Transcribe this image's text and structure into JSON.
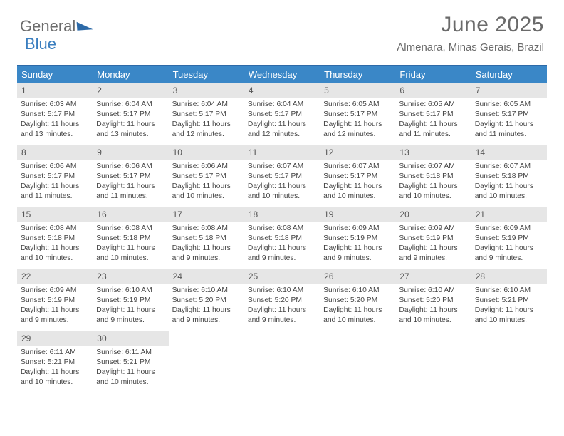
{
  "logo": {
    "text1": "General",
    "text2": "Blue"
  },
  "title": "June 2025",
  "location": "Almenara, Minas Gerais, Brazil",
  "day_names": [
    "Sunday",
    "Monday",
    "Tuesday",
    "Wednesday",
    "Thursday",
    "Friday",
    "Saturday"
  ],
  "colors": {
    "header_bg": "#3a87c7",
    "border": "#2d6aa8",
    "daynum_bg": "#e6e6e6",
    "text_muted": "#6a6a6a"
  },
  "first_weekday": 0,
  "weeks": [
    [
      {
        "n": 1,
        "sunrise": "6:03 AM",
        "sunset": "5:17 PM",
        "daylight": "11 hours and 13 minutes."
      },
      {
        "n": 2,
        "sunrise": "6:04 AM",
        "sunset": "5:17 PM",
        "daylight": "11 hours and 13 minutes."
      },
      {
        "n": 3,
        "sunrise": "6:04 AM",
        "sunset": "5:17 PM",
        "daylight": "11 hours and 12 minutes."
      },
      {
        "n": 4,
        "sunrise": "6:04 AM",
        "sunset": "5:17 PM",
        "daylight": "11 hours and 12 minutes."
      },
      {
        "n": 5,
        "sunrise": "6:05 AM",
        "sunset": "5:17 PM",
        "daylight": "11 hours and 12 minutes."
      },
      {
        "n": 6,
        "sunrise": "6:05 AM",
        "sunset": "5:17 PM",
        "daylight": "11 hours and 11 minutes."
      },
      {
        "n": 7,
        "sunrise": "6:05 AM",
        "sunset": "5:17 PM",
        "daylight": "11 hours and 11 minutes."
      }
    ],
    [
      {
        "n": 8,
        "sunrise": "6:06 AM",
        "sunset": "5:17 PM",
        "daylight": "11 hours and 11 minutes."
      },
      {
        "n": 9,
        "sunrise": "6:06 AM",
        "sunset": "5:17 PM",
        "daylight": "11 hours and 11 minutes."
      },
      {
        "n": 10,
        "sunrise": "6:06 AM",
        "sunset": "5:17 PM",
        "daylight": "11 hours and 10 minutes."
      },
      {
        "n": 11,
        "sunrise": "6:07 AM",
        "sunset": "5:17 PM",
        "daylight": "11 hours and 10 minutes."
      },
      {
        "n": 12,
        "sunrise": "6:07 AM",
        "sunset": "5:17 PM",
        "daylight": "11 hours and 10 minutes."
      },
      {
        "n": 13,
        "sunrise": "6:07 AM",
        "sunset": "5:18 PM",
        "daylight": "11 hours and 10 minutes."
      },
      {
        "n": 14,
        "sunrise": "6:07 AM",
        "sunset": "5:18 PM",
        "daylight": "11 hours and 10 minutes."
      }
    ],
    [
      {
        "n": 15,
        "sunrise": "6:08 AM",
        "sunset": "5:18 PM",
        "daylight": "11 hours and 10 minutes."
      },
      {
        "n": 16,
        "sunrise": "6:08 AM",
        "sunset": "5:18 PM",
        "daylight": "11 hours and 10 minutes."
      },
      {
        "n": 17,
        "sunrise": "6:08 AM",
        "sunset": "5:18 PM",
        "daylight": "11 hours and 9 minutes."
      },
      {
        "n": 18,
        "sunrise": "6:08 AM",
        "sunset": "5:18 PM",
        "daylight": "11 hours and 9 minutes."
      },
      {
        "n": 19,
        "sunrise": "6:09 AM",
        "sunset": "5:19 PM",
        "daylight": "11 hours and 9 minutes."
      },
      {
        "n": 20,
        "sunrise": "6:09 AM",
        "sunset": "5:19 PM",
        "daylight": "11 hours and 9 minutes."
      },
      {
        "n": 21,
        "sunrise": "6:09 AM",
        "sunset": "5:19 PM",
        "daylight": "11 hours and 9 minutes."
      }
    ],
    [
      {
        "n": 22,
        "sunrise": "6:09 AM",
        "sunset": "5:19 PM",
        "daylight": "11 hours and 9 minutes."
      },
      {
        "n": 23,
        "sunrise": "6:10 AM",
        "sunset": "5:19 PM",
        "daylight": "11 hours and 9 minutes."
      },
      {
        "n": 24,
        "sunrise": "6:10 AM",
        "sunset": "5:20 PM",
        "daylight": "11 hours and 9 minutes."
      },
      {
        "n": 25,
        "sunrise": "6:10 AM",
        "sunset": "5:20 PM",
        "daylight": "11 hours and 9 minutes."
      },
      {
        "n": 26,
        "sunrise": "6:10 AM",
        "sunset": "5:20 PM",
        "daylight": "11 hours and 10 minutes."
      },
      {
        "n": 27,
        "sunrise": "6:10 AM",
        "sunset": "5:20 PM",
        "daylight": "11 hours and 10 minutes."
      },
      {
        "n": 28,
        "sunrise": "6:10 AM",
        "sunset": "5:21 PM",
        "daylight": "11 hours and 10 minutes."
      }
    ],
    [
      {
        "n": 29,
        "sunrise": "6:11 AM",
        "sunset": "5:21 PM",
        "daylight": "11 hours and 10 minutes."
      },
      {
        "n": 30,
        "sunrise": "6:11 AM",
        "sunset": "5:21 PM",
        "daylight": "11 hours and 10 minutes."
      },
      null,
      null,
      null,
      null,
      null
    ]
  ],
  "labels": {
    "sunrise": "Sunrise:",
    "sunset": "Sunset:",
    "daylight": "Daylight:"
  }
}
